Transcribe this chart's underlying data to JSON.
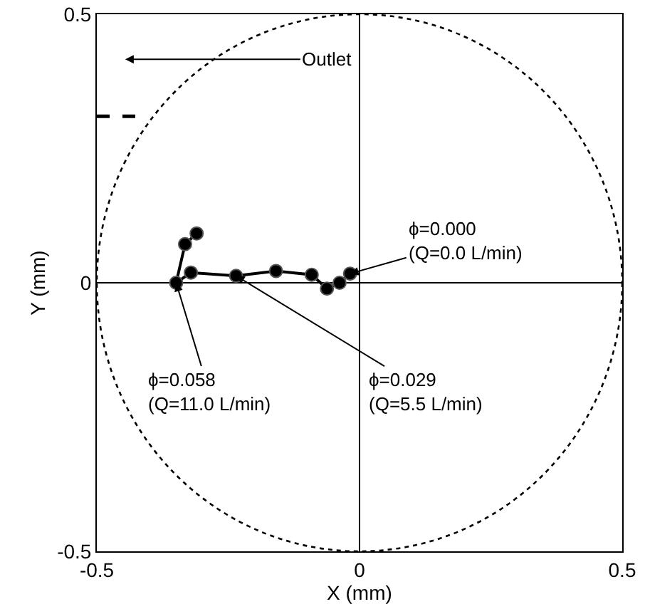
{
  "chart_data": {
    "type": "line",
    "xlabel": "X (mm)",
    "ylabel": "Y (mm)",
    "x": [
      -0.018,
      -0.038,
      -0.062,
      -0.091,
      -0.159,
      -0.235,
      -0.321,
      -0.349,
      -0.332,
      -0.31
    ],
    "series": [
      {
        "color": "#000000",
        "values": [
          0.017,
          0.0,
          -0.011,
          0.015,
          0.022,
          0.013,
          0.019,
          0.0,
          0.072,
          0.092
        ]
      }
    ],
    "marker": "circle",
    "line_style": "solid",
    "xlim": [
      -0.5,
      0.5
    ],
    "xticks": [
      -0.5,
      0,
      0.5
    ],
    "ylim": [
      -0.5,
      0.5
    ],
    "yticks": [
      -0.5,
      0,
      0.5
    ],
    "annotations": [
      "Outlet",
      {
        "text": "ϕ=0.000\n(Q=0.0 L/min)",
        "x": -0.018,
        "y": 0.017
      },
      {
        "text": "ϕ=0.058\n(Q=11.0 L/min)",
        "x": -0.349,
        "y": 0.0
      },
      {
        "text": "ϕ=0.029\n(Q=5.5 L/min)",
        "x": -0.235,
        "y": 0.013
      }
    ]
  }
}
